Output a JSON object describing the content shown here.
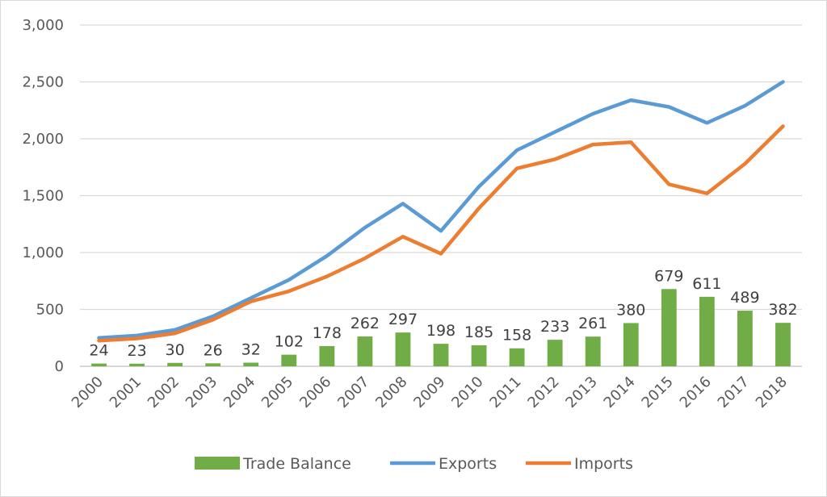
{
  "chart_data": {
    "type": "bar+line",
    "title": "",
    "xlabel": "",
    "ylabel": "",
    "ylim": [
      0,
      3000
    ],
    "yticks": [
      0,
      500,
      1000,
      1500,
      2000,
      2500,
      3000
    ],
    "ytick_labels": [
      "0",
      "500",
      "1,000",
      "1,500",
      "2,000",
      "2,500",
      "3,000"
    ],
    "grid": "horizontal",
    "legend_position": "bottom",
    "categories": [
      "2000",
      "2001",
      "2002",
      "2003",
      "2004",
      "2005",
      "2006",
      "2007",
      "2008",
      "2009",
      "2010",
      "2011",
      "2012",
      "2013",
      "2014",
      "2015",
      "2016",
      "2017",
      "2018"
    ],
    "series": [
      {
        "name": "Trade Balance",
        "kind": "bar",
        "color": "#70ad47",
        "values": [
          24,
          23,
          30,
          26,
          32,
          102,
          178,
          262,
          297,
          198,
          185,
          158,
          233,
          261,
          380,
          679,
          611,
          489,
          382
        ],
        "data_labels": [
          "24",
          "23",
          "30",
          "26",
          "32",
          "102",
          "178",
          "262",
          "297",
          "198",
          "185",
          "158",
          "233",
          "261",
          "380",
          "679",
          "611",
          "489",
          "382"
        ]
      },
      {
        "name": "Exports",
        "kind": "line",
        "color": "#5b9bd5",
        "values": [
          250,
          270,
          320,
          440,
          600,
          760,
          970,
          1220,
          1430,
          1190,
          1580,
          1900,
          2060,
          2220,
          2340,
          2280,
          2140,
          2290,
          2500
        ]
      },
      {
        "name": "Imports",
        "kind": "line",
        "color": "#ed7d31",
        "values": [
          225,
          245,
          290,
          410,
          570,
          660,
          790,
          950,
          1140,
          990,
          1390,
          1740,
          1820,
          1950,
          1970,
          1600,
          1520,
          1780,
          2110
        ]
      }
    ]
  }
}
